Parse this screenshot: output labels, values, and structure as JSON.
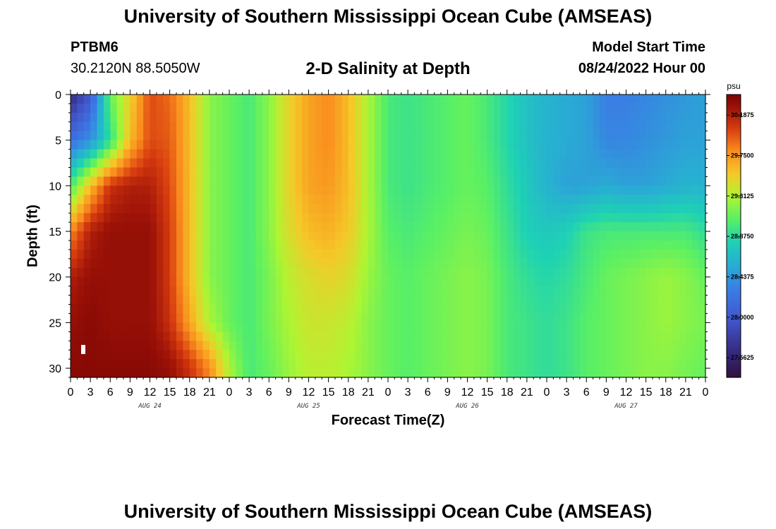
{
  "header": {
    "title": "University of Southern Mississippi Ocean Cube (AMSEAS)",
    "station_id": "PTBM6",
    "station_coords": "30.2120N  88.5050W",
    "plot_title": "2-D Salinity at Depth",
    "model_start_label": "Model Start Time",
    "model_start_value": "08/24/2022 Hour 00"
  },
  "footer": {
    "title": "University of Southern Mississippi Ocean Cube (AMSEAS)"
  },
  "chart_data": {
    "type": "heatmap",
    "title": "2-D Salinity at Depth",
    "xlabel": "Forecast Time(Z)",
    "ylabel": "Depth (ft)",
    "x_tick_labels": [
      "0",
      "3",
      "6",
      "9",
      "12",
      "15",
      "18",
      "21",
      "0",
      "3",
      "6",
      "9",
      "12",
      "15",
      "18",
      "21",
      "0",
      "3",
      "6",
      "9",
      "12",
      "15",
      "18",
      "21",
      "0",
      "3",
      "6",
      "9",
      "12",
      "15",
      "18",
      "21",
      "0"
    ],
    "date_labels": [
      "AUG 24",
      "AUG 25",
      "AUG 26",
      "AUG 27"
    ],
    "xlim_hours": [
      0,
      96
    ],
    "y_ticks": [
      0,
      5,
      10,
      15,
      20,
      25,
      30
    ],
    "ylim": [
      0,
      31
    ],
    "y_inverted": true,
    "colorbar": {
      "unit": "psu",
      "min": 27.35,
      "max": 30.41,
      "tick_labels": [
        "30.1875",
        "29.7500",
        "29.3125",
        "28.8750",
        "28.4375",
        "28.0000",
        "27.5625"
      ],
      "colormap": "jet-like (dark blue low, dark red high)"
    },
    "grid": false,
    "salinity_psu": {
      "description": "Approximate salinity (psu) by forecast hour (columns) and depth (rows), read from color",
      "hours": [
        0,
        3,
        6,
        9,
        12,
        15,
        18,
        21,
        24,
        27,
        30,
        33,
        36,
        39,
        42,
        45,
        48,
        51,
        54,
        57,
        60,
        63,
        66,
        69,
        72,
        75,
        78,
        81,
        84,
        87,
        90,
        93,
        96
      ],
      "depths_ft": [
        0,
        5,
        10,
        15,
        20,
        25,
        30
      ],
      "values": [
        [
          27.6,
          28.0,
          29.1,
          29.5,
          30.0,
          29.9,
          29.6,
          29.2,
          29.1,
          29.0,
          29.2,
          29.5,
          29.7,
          29.8,
          29.6,
          29.3,
          29.0,
          28.95,
          29.0,
          29.05,
          29.1,
          29.0,
          28.85,
          28.7,
          28.6,
          28.55,
          28.5,
          28.3,
          28.3,
          28.35,
          28.4,
          28.45,
          28.5
        ],
        [
          28.2,
          28.4,
          28.9,
          29.6,
          30.0,
          29.95,
          29.6,
          29.2,
          29.1,
          29.0,
          29.2,
          29.5,
          29.7,
          29.8,
          29.6,
          29.3,
          29.0,
          28.95,
          29.0,
          29.05,
          29.1,
          29.0,
          28.85,
          28.7,
          28.6,
          28.55,
          28.5,
          28.35,
          28.35,
          28.4,
          28.45,
          28.5,
          28.5
        ],
        [
          29.0,
          29.6,
          30.1,
          30.2,
          30.2,
          30.0,
          29.6,
          29.2,
          29.1,
          29.0,
          29.2,
          29.5,
          29.7,
          29.75,
          29.6,
          29.3,
          29.0,
          28.95,
          29.0,
          29.05,
          29.1,
          29.05,
          28.9,
          28.75,
          28.6,
          28.5,
          28.5,
          28.55,
          28.5,
          28.5,
          28.55,
          28.6,
          28.6
        ],
        [
          29.8,
          30.2,
          30.3,
          30.3,
          30.3,
          30.05,
          29.6,
          29.2,
          29.1,
          29.0,
          29.2,
          29.45,
          29.6,
          29.65,
          29.55,
          29.3,
          29.05,
          29.0,
          29.05,
          29.1,
          29.15,
          29.1,
          28.95,
          28.8,
          28.75,
          28.8,
          28.95,
          29.0,
          29.0,
          29.0,
          29.0,
          29.0,
          28.9
        ],
        [
          30.2,
          30.3,
          30.3,
          30.3,
          30.3,
          30.05,
          29.6,
          29.2,
          29.1,
          29.0,
          29.15,
          29.35,
          29.45,
          29.5,
          29.45,
          29.25,
          29.1,
          29.05,
          29.1,
          29.15,
          29.2,
          29.15,
          29.0,
          28.9,
          28.85,
          28.9,
          29.0,
          29.1,
          29.15,
          29.2,
          29.25,
          29.2,
          29.1
        ],
        [
          30.3,
          30.35,
          30.3,
          30.3,
          30.3,
          30.1,
          29.7,
          29.3,
          29.1,
          29.0,
          29.15,
          29.3,
          29.4,
          29.4,
          29.35,
          29.2,
          29.1,
          29.05,
          29.1,
          29.15,
          29.2,
          29.15,
          29.0,
          28.95,
          28.9,
          28.95,
          29.05,
          29.1,
          29.15,
          29.2,
          29.25,
          29.2,
          29.15
        ],
        [
          30.35,
          30.35,
          30.35,
          30.35,
          30.35,
          30.3,
          30.1,
          29.8,
          29.3,
          29.0,
          29.1,
          29.25,
          29.35,
          29.35,
          29.3,
          29.2,
          29.1,
          29.05,
          29.1,
          29.15,
          29.2,
          29.15,
          29.0,
          28.95,
          28.9,
          28.95,
          29.05,
          29.1,
          29.15,
          29.2,
          29.2,
          29.15,
          29.1
        ]
      ]
    }
  }
}
